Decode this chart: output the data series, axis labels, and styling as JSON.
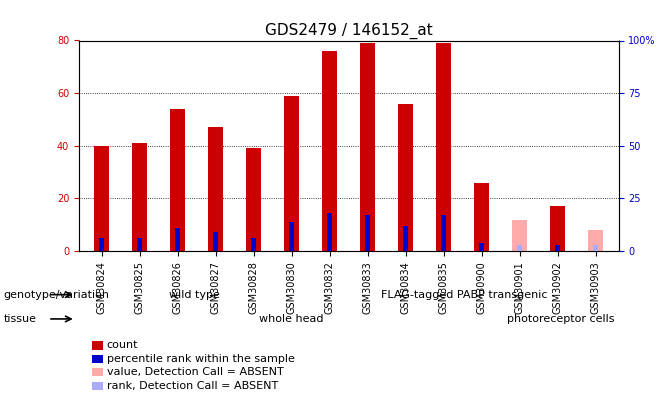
{
  "title": "GDS2479 / 146152_at",
  "samples": [
    "GSM30824",
    "GSM30825",
    "GSM30826",
    "GSM30827",
    "GSM30828",
    "GSM30830",
    "GSM30832",
    "GSM30833",
    "GSM30834",
    "GSM30835",
    "GSM30900",
    "GSM30901",
    "GSM30902",
    "GSM30903"
  ],
  "count_values": [
    40,
    41,
    54,
    47,
    39,
    59,
    76,
    79,
    56,
    79,
    26,
    null,
    17,
    null
  ],
  "rank_values": [
    6,
    6,
    11,
    9,
    6,
    14,
    18,
    17,
    12,
    17,
    4,
    null,
    3,
    null
  ],
  "absent_count_values": [
    null,
    null,
    null,
    null,
    null,
    null,
    null,
    null,
    null,
    null,
    null,
    12,
    null,
    8
  ],
  "absent_rank_values": [
    null,
    null,
    null,
    null,
    null,
    null,
    null,
    null,
    null,
    null,
    null,
    3,
    null,
    3
  ],
  "bar_width": 0.4,
  "count_color": "#cc0000",
  "rank_color": "#0000cc",
  "absent_count_color": "#ffaaaa",
  "absent_rank_color": "#aaaaff",
  "ylim_left": [
    0,
    80
  ],
  "ylim_right": [
    0,
    100
  ],
  "yticks_left": [
    0,
    20,
    40,
    60,
    80
  ],
  "yticks_right": [
    0,
    25,
    50,
    75,
    100
  ],
  "yticklabels_right": [
    "0",
    "25",
    "50",
    "75",
    "100%"
  ],
  "plot_bg": "#ffffff",
  "genotype_groups": [
    {
      "label": "wild type",
      "start": 0,
      "end": 5,
      "color": "#aaffaa"
    },
    {
      "label": "FLAG-tagged PABP transgenic",
      "start": 6,
      "end": 13,
      "color": "#44ee44"
    }
  ],
  "tissue_groups": [
    {
      "label": "whole head",
      "start": 0,
      "end": 10,
      "color": "#ffaaff"
    },
    {
      "label": "photoreceptor cells",
      "start": 11,
      "end": 13,
      "color": "#ee44ee"
    }
  ],
  "legend_items": [
    {
      "label": "count",
      "color": "#cc0000"
    },
    {
      "label": "percentile rank within the sample",
      "color": "#0000cc"
    },
    {
      "label": "value, Detection Call = ABSENT",
      "color": "#ffaaaa"
    },
    {
      "label": "rank, Detection Call = ABSENT",
      "color": "#aaaaff"
    }
  ],
  "title_fontsize": 11,
  "tick_fontsize": 7,
  "label_fontsize": 8,
  "legend_fontsize": 8
}
